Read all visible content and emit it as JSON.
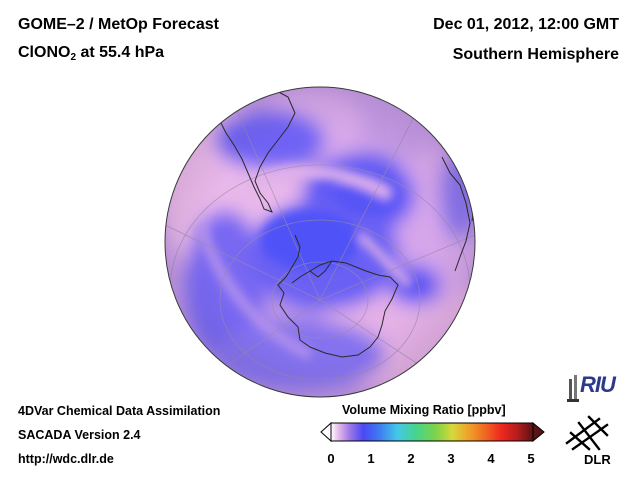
{
  "header": {
    "product": "GOME–2 / MetOp Forecast",
    "species_prefix": "ClONO",
    "species_subscript": "2",
    "species_suffix": " at 55.4 hPa",
    "datetime": "Dec 01, 2012, 12:00 GMT",
    "region": "Southern Hemisphere"
  },
  "footer": {
    "line1": "4DVar Chemical Data Assimilation",
    "line2": "SACADA Version 2.4",
    "url": "http://wdc.dlr.de"
  },
  "colorbar": {
    "title": "Volume Mixing Ratio [ppbv]",
    "ticks": [
      "0",
      "1",
      "2",
      "3",
      "4",
      "5"
    ],
    "range": [
      0,
      5
    ]
  },
  "logos": {
    "riu": "RIU",
    "dlr": "DLR"
  },
  "map": {
    "projection": "orthographic",
    "hemisphere": "south",
    "colors": {
      "low": "#5a5cff",
      "mid": "#8f7ff0",
      "high": "#e6b4e6",
      "background": "#c99ae2"
    }
  }
}
